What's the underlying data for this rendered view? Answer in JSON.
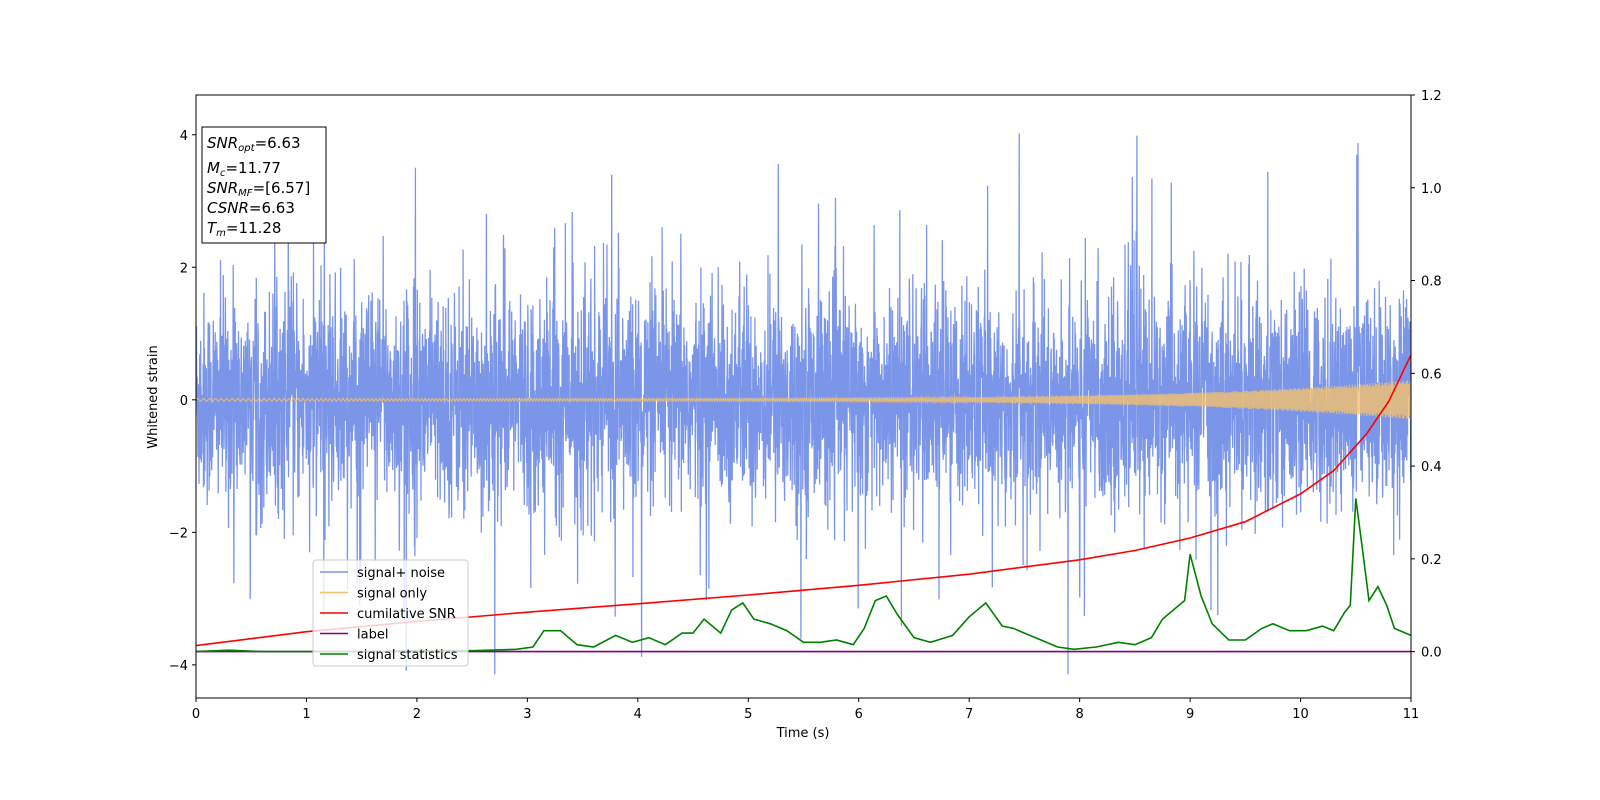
{
  "chart_data": {
    "type": "line",
    "xlabel": "Time (s)",
    "ylabel": "Whitened strain",
    "xlim": [
      0,
      11
    ],
    "ylim_left": [
      -4.5,
      4.6
    ],
    "ylim_right": [
      -0.1,
      1.2
    ],
    "x_ticks": [
      0,
      1,
      2,
      3,
      4,
      5,
      6,
      7,
      8,
      9,
      10,
      11
    ],
    "y_ticks_left": [
      -4,
      -2,
      0,
      2,
      4
    ],
    "y_ticks_right": [
      0.0,
      0.2,
      0.4,
      0.6,
      0.8,
      1.0,
      1.2
    ],
    "grid": false,
    "legend_position": "lower-left",
    "info_box": {
      "lines": [
        {
          "name": "SNR",
          "sub": "opt",
          "value": "=6.63"
        },
        {
          "name": "M",
          "sub": "c",
          "value": "=11.77"
        },
        {
          "name": "SNR",
          "sub": "MF",
          "value": "=[6.57]"
        },
        {
          "name": "CSNR",
          "sub": "",
          "value": "=6.63"
        },
        {
          "name": "T",
          "sub": "m",
          "value": "=11.28"
        }
      ]
    },
    "series": [
      {
        "name": "signal+ noise",
        "color": "#7b96e8",
        "axis": "left",
        "kind": "noise",
        "typical_amplitude": 1.9,
        "peak_amplitude": 4.15
      },
      {
        "name": "signal only",
        "color": "#f5c06e",
        "axis": "left",
        "kind": "chirp",
        "amplitude_start": 0.02,
        "amplitude_end": 0.3
      },
      {
        "name": "cumilative SNR",
        "color": "#ff0000",
        "axis": "right",
        "kind": "curve",
        "x": [
          0,
          1,
          2,
          3,
          4,
          5,
          6,
          7,
          8,
          8.5,
          9,
          9.5,
          10,
          10.3,
          10.6,
          10.8,
          11
        ],
        "y": [
          0.013,
          0.043,
          0.065,
          0.085,
          0.103,
          0.122,
          0.143,
          0.167,
          0.198,
          0.218,
          0.245,
          0.28,
          0.34,
          0.39,
          0.47,
          0.54,
          0.64
        ]
      },
      {
        "name": "label",
        "color": "#800080",
        "axis": "right",
        "kind": "curve",
        "x": [
          0,
          11
        ],
        "y": [
          0.0,
          0.0
        ]
      },
      {
        "name": "signal statistics",
        "color": "#008000",
        "axis": "right",
        "kind": "curve",
        "x": [
          0,
          0.3,
          0.6,
          1,
          1.5,
          2,
          2.5,
          2.9,
          3.05,
          3.15,
          3.3,
          3.45,
          3.6,
          3.8,
          3.95,
          4.1,
          4.25,
          4.4,
          4.5,
          4.6,
          4.75,
          4.85,
          4.95,
          5.05,
          5.2,
          5.35,
          5.5,
          5.65,
          5.8,
          5.95,
          6.05,
          6.15,
          6.25,
          6.35,
          6.5,
          6.65,
          6.85,
          7.0,
          7.15,
          7.3,
          7.4,
          7.5,
          7.65,
          7.8,
          7.95,
          8.15,
          8.35,
          8.5,
          8.65,
          8.75,
          8.85,
          8.95,
          9.0,
          9.1,
          9.2,
          9.35,
          9.5,
          9.65,
          9.75,
          9.9,
          10.05,
          10.2,
          10.3,
          10.4,
          10.45,
          10.5,
          10.55,
          10.62,
          10.7,
          10.78,
          10.85,
          11.0
        ],
        "y": [
          0.0,
          0.003,
          0.0,
          0.0,
          0.0,
          0.002,
          0.002,
          0.005,
          0.01,
          0.045,
          0.045,
          0.015,
          0.01,
          0.035,
          0.02,
          0.03,
          0.015,
          0.04,
          0.04,
          0.07,
          0.04,
          0.09,
          0.105,
          0.07,
          0.06,
          0.045,
          0.02,
          0.02,
          0.025,
          0.015,
          0.05,
          0.11,
          0.12,
          0.08,
          0.03,
          0.02,
          0.035,
          0.075,
          0.105,
          0.055,
          0.05,
          0.04,
          0.025,
          0.01,
          0.005,
          0.01,
          0.02,
          0.015,
          0.03,
          0.07,
          0.09,
          0.11,
          0.21,
          0.12,
          0.06,
          0.025,
          0.025,
          0.05,
          0.06,
          0.045,
          0.045,
          0.055,
          0.045,
          0.085,
          0.1,
          0.33,
          0.24,
          0.11,
          0.14,
          0.1,
          0.05,
          0.035
        ]
      }
    ]
  }
}
